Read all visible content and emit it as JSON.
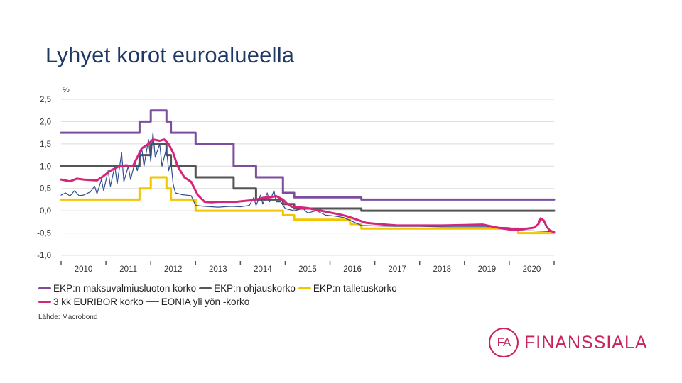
{
  "slide": {
    "title": "Lyhyet korot euroalueella"
  },
  "chart_data": {
    "type": "line",
    "ylabel": "%",
    "ylim": [
      -1.0,
      2.5
    ],
    "yticks": [
      2.5,
      2.0,
      1.5,
      1.0,
      0.5,
      0.0,
      -0.5,
      -1.0
    ],
    "ytick_labels": [
      "2,5",
      "2,0",
      "1,5",
      "1,0",
      "0,5",
      "0,0",
      "-0,5",
      "-1,0"
    ],
    "xlim": [
      2009.5,
      2020.5
    ],
    "xtick_labels": [
      "2010",
      "2011",
      "2012",
      "2013",
      "2014",
      "2015",
      "2016",
      "2017",
      "2018",
      "2019",
      "2020"
    ],
    "grid": true,
    "legend_position": "bottom",
    "series": [
      {
        "name": "EKP:n maksuvalmiusluoton korko",
        "color": "#7b4f9e",
        "width": 3,
        "step": true,
        "points": [
          [
            2009.5,
            1.75
          ],
          [
            2011.25,
            1.75
          ],
          [
            2011.25,
            2.0
          ],
          [
            2011.5,
            2.0
          ],
          [
            2011.5,
            2.25
          ],
          [
            2011.85,
            2.25
          ],
          [
            2011.85,
            2.0
          ],
          [
            2011.95,
            2.0
          ],
          [
            2011.95,
            1.75
          ],
          [
            2012.5,
            1.75
          ],
          [
            2012.5,
            1.5
          ],
          [
            2013.35,
            1.5
          ],
          [
            2013.35,
            1.0
          ],
          [
            2013.85,
            1.0
          ],
          [
            2013.85,
            0.75
          ],
          [
            2014.45,
            0.75
          ],
          [
            2014.45,
            0.4
          ],
          [
            2014.7,
            0.4
          ],
          [
            2014.7,
            0.3
          ],
          [
            2016.2,
            0.3
          ],
          [
            2016.2,
            0.25
          ],
          [
            2020.5,
            0.25
          ]
        ]
      },
      {
        "name": "EKP:n ohjauskorko",
        "color": "#555555",
        "width": 3,
        "step": true,
        "points": [
          [
            2009.5,
            1.0
          ],
          [
            2011.25,
            1.0
          ],
          [
            2011.25,
            1.25
          ],
          [
            2011.5,
            1.25
          ],
          [
            2011.5,
            1.5
          ],
          [
            2011.85,
            1.5
          ],
          [
            2011.85,
            1.25
          ],
          [
            2011.95,
            1.25
          ],
          [
            2011.95,
            1.0
          ],
          [
            2012.5,
            1.0
          ],
          [
            2012.5,
            0.75
          ],
          [
            2013.35,
            0.75
          ],
          [
            2013.35,
            0.5
          ],
          [
            2013.85,
            0.5
          ],
          [
            2013.85,
            0.25
          ],
          [
            2014.45,
            0.25
          ],
          [
            2014.45,
            0.15
          ],
          [
            2014.7,
            0.15
          ],
          [
            2014.7,
            0.05
          ],
          [
            2016.2,
            0.05
          ],
          [
            2016.2,
            0.0
          ],
          [
            2020.5,
            0.0
          ]
        ]
      },
      {
        "name": "EKP:n talletuskorko",
        "color": "#f2c500",
        "width": 3,
        "step": true,
        "points": [
          [
            2009.5,
            0.25
          ],
          [
            2011.25,
            0.25
          ],
          [
            2011.25,
            0.5
          ],
          [
            2011.5,
            0.5
          ],
          [
            2011.5,
            0.75
          ],
          [
            2011.85,
            0.75
          ],
          [
            2011.85,
            0.5
          ],
          [
            2011.95,
            0.5
          ],
          [
            2011.95,
            0.25
          ],
          [
            2012.5,
            0.25
          ],
          [
            2012.5,
            0.0
          ],
          [
            2014.45,
            0.0
          ],
          [
            2014.45,
            -0.1
          ],
          [
            2014.7,
            -0.1
          ],
          [
            2014.7,
            -0.2
          ],
          [
            2015.95,
            -0.2
          ],
          [
            2015.95,
            -0.3
          ],
          [
            2016.2,
            -0.3
          ],
          [
            2016.2,
            -0.4
          ],
          [
            2019.7,
            -0.4
          ],
          [
            2019.7,
            -0.5
          ],
          [
            2020.5,
            -0.5
          ]
        ]
      },
      {
        "name": "3 kk EURIBOR korko",
        "color": "#d4257a",
        "width": 3,
        "step": false,
        "points": [
          [
            2009.5,
            0.7
          ],
          [
            2009.7,
            0.66
          ],
          [
            2009.85,
            0.72
          ],
          [
            2010.0,
            0.7
          ],
          [
            2010.3,
            0.68
          ],
          [
            2010.45,
            0.78
          ],
          [
            2010.6,
            0.9
          ],
          [
            2010.8,
            1.0
          ],
          [
            2010.95,
            1.02
          ],
          [
            2011.1,
            1.0
          ],
          [
            2011.2,
            1.2
          ],
          [
            2011.3,
            1.4
          ],
          [
            2011.45,
            1.5
          ],
          [
            2011.55,
            1.6
          ],
          [
            2011.7,
            1.57
          ],
          [
            2011.8,
            1.6
          ],
          [
            2011.9,
            1.5
          ],
          [
            2012.0,
            1.3
          ],
          [
            2012.1,
            1.0
          ],
          [
            2012.25,
            0.75
          ],
          [
            2012.4,
            0.65
          ],
          [
            2012.55,
            0.35
          ],
          [
            2012.7,
            0.2
          ],
          [
            2012.85,
            0.19
          ],
          [
            2013.0,
            0.2
          ],
          [
            2013.4,
            0.2
          ],
          [
            2013.6,
            0.22
          ],
          [
            2013.8,
            0.24
          ],
          [
            2014.0,
            0.29
          ],
          [
            2014.15,
            0.3
          ],
          [
            2014.3,
            0.33
          ],
          [
            2014.45,
            0.25
          ],
          [
            2014.55,
            0.15
          ],
          [
            2014.65,
            0.09
          ],
          [
            2014.8,
            0.08
          ],
          [
            2015.0,
            0.06
          ],
          [
            2015.3,
            0.0
          ],
          [
            2015.55,
            -0.05
          ],
          [
            2015.75,
            -0.09
          ],
          [
            2015.9,
            -0.13
          ],
          [
            2016.1,
            -0.2
          ],
          [
            2016.3,
            -0.27
          ],
          [
            2016.6,
            -0.3
          ],
          [
            2017.0,
            -0.33
          ],
          [
            2017.5,
            -0.33
          ],
          [
            2018.0,
            -0.33
          ],
          [
            2018.5,
            -0.32
          ],
          [
            2018.9,
            -0.31
          ],
          [
            2019.1,
            -0.35
          ],
          [
            2019.3,
            -0.39
          ],
          [
            2019.5,
            -0.42
          ],
          [
            2019.75,
            -0.42
          ],
          [
            2019.9,
            -0.4
          ],
          [
            2020.05,
            -0.38
          ],
          [
            2020.15,
            -0.3
          ],
          [
            2020.2,
            -0.17
          ],
          [
            2020.27,
            -0.22
          ],
          [
            2020.33,
            -0.35
          ],
          [
            2020.4,
            -0.44
          ],
          [
            2020.5,
            -0.48
          ]
        ]
      },
      {
        "name": "EONIA yli yön -korko",
        "color": "#2f4f8f",
        "width": 1.2,
        "step": false,
        "points": [
          [
            2009.5,
            0.35
          ],
          [
            2009.6,
            0.4
          ],
          [
            2009.7,
            0.33
          ],
          [
            2009.8,
            0.45
          ],
          [
            2009.9,
            0.34
          ],
          [
            2010.0,
            0.35
          ],
          [
            2010.15,
            0.42
          ],
          [
            2010.25,
            0.55
          ],
          [
            2010.3,
            0.38
          ],
          [
            2010.4,
            0.7
          ],
          [
            2010.45,
            0.45
          ],
          [
            2010.55,
            0.9
          ],
          [
            2010.6,
            0.55
          ],
          [
            2010.7,
            1.0
          ],
          [
            2010.75,
            0.6
          ],
          [
            2010.85,
            1.3
          ],
          [
            2010.9,
            0.65
          ],
          [
            2011.0,
            1.0
          ],
          [
            2011.05,
            0.7
          ],
          [
            2011.15,
            1.1
          ],
          [
            2011.2,
            0.9
          ],
          [
            2011.3,
            1.4
          ],
          [
            2011.35,
            1.0
          ],
          [
            2011.45,
            1.6
          ],
          [
            2011.5,
            1.1
          ],
          [
            2011.55,
            1.75
          ],
          [
            2011.6,
            1.2
          ],
          [
            2011.7,
            1.5
          ],
          [
            2011.75,
            1.0
          ],
          [
            2011.85,
            1.4
          ],
          [
            2011.9,
            0.9
          ],
          [
            2011.95,
            1.1
          ],
          [
            2012.0,
            0.6
          ],
          [
            2012.05,
            0.4
          ],
          [
            2012.2,
            0.36
          ],
          [
            2012.4,
            0.34
          ],
          [
            2012.5,
            0.12
          ],
          [
            2012.7,
            0.1
          ],
          [
            2013.0,
            0.08
          ],
          [
            2013.3,
            0.1
          ],
          [
            2013.5,
            0.09
          ],
          [
            2013.7,
            0.12
          ],
          [
            2013.8,
            0.3
          ],
          [
            2013.85,
            0.12
          ],
          [
            2013.95,
            0.35
          ],
          [
            2014.0,
            0.15
          ],
          [
            2014.1,
            0.4
          ],
          [
            2014.15,
            0.2
          ],
          [
            2014.25,
            0.45
          ],
          [
            2014.3,
            0.2
          ],
          [
            2014.4,
            0.2
          ],
          [
            2014.5,
            0.05
          ],
          [
            2014.7,
            0.0
          ],
          [
            2014.9,
            0.05
          ],
          [
            2015.0,
            -0.05
          ],
          [
            2015.2,
            0.0
          ],
          [
            2015.4,
            -0.1
          ],
          [
            2015.6,
            -0.12
          ],
          [
            2015.8,
            -0.15
          ],
          [
            2016.0,
            -0.24
          ],
          [
            2016.2,
            -0.33
          ],
          [
            2016.5,
            -0.34
          ],
          [
            2017.0,
            -0.35
          ],
          [
            2017.5,
            -0.35
          ],
          [
            2018.0,
            -0.36
          ],
          [
            2018.5,
            -0.36
          ],
          [
            2019.0,
            -0.36
          ],
          [
            2019.5,
            -0.38
          ],
          [
            2019.75,
            -0.45
          ],
          [
            2020.0,
            -0.45
          ],
          [
            2020.3,
            -0.46
          ],
          [
            2020.5,
            -0.47
          ]
        ]
      }
    ]
  },
  "legend": {
    "rows": [
      [
        {
          "label": "EKP:n maksuvalmiusluoton korko",
          "color": "#7b4f9e"
        },
        {
          "label": "EKP:n ohjauskorko",
          "color": "#555555"
        },
        {
          "label": "EKP:n talletuskorko",
          "color": "#f2c500"
        }
      ],
      [
        {
          "label": "3 kk EURIBOR korko",
          "color": "#d4257a"
        },
        {
          "label": "EONIA yli yön -korko",
          "color": "#2f4f8f"
        }
      ]
    ]
  },
  "source": "Lähde: Macrobond",
  "logo": {
    "mark": "FA",
    "text": "FINANSSIALA",
    "color": "#c8245a"
  }
}
